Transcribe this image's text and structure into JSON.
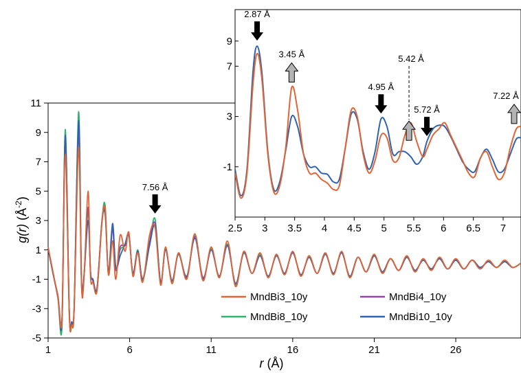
{
  "chart_data": [
    {
      "type": "line",
      "title": "",
      "xlabel_italic": "r",
      "xlabel_unit": "(Å)",
      "ylabel_italic": "g(r)",
      "ylabel_unit_base": "(Å",
      "ylabel_unit_sup": "-2",
      "ylabel_unit_end": ")",
      "xlim": [
        1,
        30
      ],
      "ylim": [
        -5,
        11
      ],
      "xticks": [
        1,
        6,
        11,
        16,
        21,
        26
      ],
      "yticks": [
        -5,
        -3,
        -1,
        1,
        3,
        5,
        7,
        9,
        11
      ],
      "grid": false,
      "legend_position": "bottom-right",
      "colors": {
        "MndBi3_10y": "#e06535",
        "MndBi4_10y": "#8e44a8",
        "MndBi8_10y": "#2fb36b",
        "MndBi10_10y": "#2e62b0"
      },
      "series": [
        {
          "name": "MndBi3_10y",
          "x": [
            1.0,
            1.3,
            1.6,
            1.85,
            2.05,
            2.3,
            2.45,
            2.6,
            2.87,
            3.05,
            3.2,
            3.45,
            3.6,
            3.75,
            4.0,
            4.3,
            4.5,
            4.7,
            4.95,
            5.15,
            5.42,
            5.72,
            5.95,
            6.2,
            6.5,
            6.8,
            7.22,
            7.56,
            7.9,
            8.2,
            8.6,
            9.0,
            9.5,
            10.0,
            10.5,
            11.0,
            11.5,
            12.0,
            12.5,
            13.0,
            13.5,
            14.0,
            14.5,
            15.0,
            15.5,
            16.0,
            16.5,
            17.0,
            17.5,
            18.0,
            18.5,
            19.0,
            19.5,
            20.0,
            20.5,
            21.0,
            21.5,
            22.0,
            22.5,
            23.0,
            23.5,
            24.0,
            24.5,
            25.0,
            25.5,
            26.0,
            26.5,
            27.0,
            27.5,
            28.0,
            28.5,
            29.0,
            29.5,
            30.0
          ],
          "y": [
            1.2,
            -0.5,
            -2.2,
            -3.8,
            7.5,
            -3.5,
            -4.1,
            -3.0,
            8.0,
            -1.5,
            -1.0,
            5.0,
            -0.8,
            -1.2,
            -1.8,
            2.8,
            3.8,
            -0.7,
            1.6,
            -1.0,
            2.0,
            0.9,
            2.2,
            -0.8,
            0.8,
            -1.2,
            2.0,
            2.5,
            -1.4,
            1.2,
            -1.3,
            0.8,
            -1.0,
            2.1,
            -1.1,
            1.2,
            -0.9,
            1.6,
            -1.5,
            0.9,
            -0.6,
            0.8,
            -0.9,
            0.7,
            -0.7,
            0.9,
            -0.8,
            0.6,
            -0.6,
            0.8,
            -0.7,
            0.9,
            -0.9,
            0.5,
            -0.5,
            0.7,
            -0.6,
            0.4,
            -0.4,
            0.6,
            -0.5,
            0.4,
            -0.4,
            0.5,
            -0.3,
            0.4,
            -0.3,
            0.3,
            -0.3,
            0.3,
            -0.2,
            0.3,
            -0.2,
            0.1
          ]
        },
        {
          "name": "MndBi4_10y",
          "x": [
            1.0,
            1.3,
            1.6,
            1.85,
            2.05,
            2.3,
            2.45,
            2.6,
            2.87,
            3.05,
            3.2,
            3.45,
            3.6,
            3.75,
            4.0,
            4.3,
            4.5,
            4.7,
            4.95,
            5.15,
            5.42,
            5.72,
            5.95,
            6.2,
            6.5,
            6.8,
            7.22,
            7.56,
            7.9,
            8.2,
            8.6,
            9.0,
            9.5,
            10.0,
            10.5,
            11.0,
            11.5,
            12.0,
            12.5,
            13.0,
            13.5,
            14.0,
            14.5,
            15.0,
            15.5,
            16.0,
            16.5,
            17.0,
            17.5,
            18.0,
            18.5,
            19.0,
            19.5,
            20.0,
            20.5,
            21.0,
            21.5,
            22.0,
            22.5,
            23.0,
            23.5,
            24.0,
            24.5,
            25.0,
            25.5,
            26.0,
            26.5,
            27.0,
            27.5,
            28.0,
            28.5,
            29.0,
            29.5,
            30.0
          ],
          "y": [
            1.1,
            -0.6,
            -2.1,
            -3.6,
            8.5,
            -3.2,
            -3.9,
            -2.8,
            9.0,
            -1.3,
            -0.8,
            3.9,
            -0.5,
            -1.0,
            -1.6,
            2.9,
            3.6,
            -0.6,
            2.4,
            -0.4,
            1.2,
            1.3,
            2.0,
            -0.6,
            0.9,
            -1.0,
            1.5,
            2.8,
            -1.2,
            1.0,
            -1.1,
            0.7,
            -0.9,
            1.9,
            -0.9,
            1.0,
            -0.8,
            1.3,
            -1.3,
            0.8,
            -0.6,
            0.6,
            -0.8,
            0.6,
            -0.6,
            0.8,
            -0.7,
            0.5,
            -0.6,
            0.7,
            -0.6,
            0.8,
            -0.8,
            0.5,
            -0.5,
            0.6,
            -0.5,
            0.4,
            -0.4,
            0.5,
            -0.4,
            0.3,
            -0.3,
            0.4,
            -0.3,
            0.3,
            -0.3,
            0.3,
            -0.2,
            0.2,
            -0.2,
            0.2,
            -0.2,
            0.1
          ]
        },
        {
          "name": "MndBi8_10y",
          "x": [
            1.0,
            1.3,
            1.6,
            1.85,
            2.05,
            2.3,
            2.45,
            2.6,
            2.87,
            3.05,
            3.2,
            3.45,
            3.6,
            3.75,
            4.0,
            4.3,
            4.5,
            4.7,
            4.95,
            5.15,
            5.42,
            5.72,
            5.95,
            6.2,
            6.5,
            6.8,
            7.22,
            7.56,
            7.9,
            8.2,
            8.6,
            9.0,
            9.5,
            10.0,
            10.5,
            11.0,
            11.5,
            12.0,
            12.5,
            13.0,
            13.5,
            14.0,
            14.5,
            15.0,
            15.5,
            16.0,
            16.5,
            17.0,
            17.5,
            18.0,
            18.5,
            19.0,
            19.5,
            20.0,
            20.5,
            21.0,
            21.5,
            22.0,
            22.5,
            23.0,
            23.5,
            24.0,
            24.5,
            25.0,
            25.5,
            26.0,
            26.5,
            27.0,
            27.5,
            28.0,
            28.5,
            29.0,
            29.5,
            30.0
          ],
          "y": [
            1.1,
            -0.6,
            -2.3,
            -4.2,
            9.2,
            -3.4,
            -4.0,
            -2.9,
            10.4,
            -1.2,
            -0.7,
            3.6,
            -0.5,
            -1.0,
            -1.7,
            3.0,
            4.0,
            -0.7,
            2.6,
            -0.3,
            1.0,
            1.3,
            2.1,
            -0.7,
            1.0,
            -1.1,
            1.4,
            3.1,
            -1.3,
            1.1,
            -1.2,
            0.8,
            -0.9,
            2.0,
            -1.0,
            1.1,
            -0.8,
            1.4,
            -1.4,
            0.8,
            -0.6,
            0.7,
            -0.8,
            0.6,
            -0.6,
            0.8,
            -0.7,
            0.5,
            -0.6,
            0.7,
            -0.6,
            0.8,
            -0.8,
            0.5,
            -0.5,
            0.6,
            -0.5,
            0.4,
            -0.4,
            0.5,
            -0.4,
            0.3,
            -0.3,
            0.4,
            -0.3,
            0.3,
            -0.3,
            0.3,
            -0.2,
            0.2,
            -0.2,
            0.2,
            -0.2,
            0.1
          ]
        },
        {
          "name": "MndBi10_10y",
          "x": [
            1.0,
            1.3,
            1.6,
            1.85,
            2.05,
            2.3,
            2.45,
            2.6,
            2.87,
            3.05,
            3.2,
            3.45,
            3.6,
            3.75,
            4.0,
            4.3,
            4.5,
            4.7,
            4.95,
            5.15,
            5.42,
            5.72,
            5.95,
            6.2,
            6.5,
            6.8,
            7.22,
            7.56,
            7.9,
            8.2,
            8.6,
            9.0,
            9.5,
            10.0,
            10.5,
            11.0,
            11.5,
            12.0,
            12.5,
            13.0,
            13.5,
            14.0,
            14.5,
            15.0,
            15.5,
            16.0,
            16.5,
            17.0,
            17.5,
            18.0,
            18.5,
            19.0,
            19.5,
            20.0,
            20.5,
            21.0,
            21.5,
            22.0,
            22.5,
            23.0,
            23.5,
            24.0,
            24.5,
            25.0,
            25.5,
            26.0,
            26.5,
            27.0,
            27.5,
            28.0,
            28.5,
            29.0,
            29.5,
            30.0
          ],
          "y": [
            1.1,
            -0.6,
            -2.2,
            -3.9,
            8.8,
            -3.3,
            -3.9,
            -2.8,
            9.8,
            -1.2,
            -0.8,
            3.0,
            -0.5,
            -1.1,
            -1.6,
            2.9,
            3.4,
            -0.6,
            2.8,
            -0.2,
            0.6,
            1.4,
            2.0,
            -0.6,
            0.9,
            -1.0,
            1.3,
            2.6,
            -1.2,
            1.0,
            -1.1,
            0.7,
            -0.8,
            1.8,
            -1.0,
            1.0,
            -0.8,
            1.3,
            -1.3,
            0.8,
            -0.6,
            0.6,
            -0.8,
            0.6,
            -0.6,
            0.8,
            -0.7,
            0.5,
            -0.6,
            0.7,
            -0.6,
            0.8,
            -0.8,
            0.5,
            -0.5,
            0.6,
            -0.5,
            0.4,
            -0.4,
            0.5,
            -0.4,
            0.3,
            -0.3,
            0.4,
            -0.3,
            0.3,
            -0.3,
            0.3,
            -0.2,
            0.2,
            -0.2,
            0.2,
            -0.2,
            0.1
          ]
        }
      ],
      "annotations": [
        {
          "label": "7.56 Å",
          "x": 7.56,
          "y": 3.1,
          "arrow": "down",
          "arrow_color": "black"
        }
      ]
    },
    {
      "type": "line",
      "inset": true,
      "title": "",
      "xlim": [
        2.5,
        7.3
      ],
      "ylim": [
        -5,
        11.5
      ],
      "xticks": [
        2.5,
        3,
        3.5,
        4,
        4.5,
        5,
        5.5,
        6,
        6.5,
        7
      ],
      "xtick_labels": [
        "2.5",
        "3",
        "3.5",
        "4",
        "4.5",
        "5",
        "5.5",
        "6",
        "6.5",
        "7"
      ],
      "yticks": [
        -1,
        3,
        7,
        9
      ],
      "colors": {
        "MndBi3_10y": "#e06535",
        "MndBi10_10y": "#2e62b0"
      },
      "series": [
        {
          "name": "MndBi3_10y",
          "x": [
            2.5,
            2.6,
            2.7,
            2.8,
            2.87,
            2.95,
            3.05,
            3.15,
            3.25,
            3.35,
            3.45,
            3.55,
            3.65,
            3.75,
            3.85,
            3.95,
            4.05,
            4.15,
            4.25,
            4.35,
            4.45,
            4.55,
            4.65,
            4.75,
            4.85,
            4.95,
            5.05,
            5.15,
            5.25,
            5.35,
            5.45,
            5.55,
            5.65,
            5.72,
            5.82,
            5.92,
            6.02,
            6.12,
            6.22,
            6.32,
            6.42,
            6.52,
            6.62,
            6.72,
            6.82,
            6.92,
            7.02,
            7.12,
            7.22,
            7.3
          ],
          "y": [
            -1.5,
            -3.5,
            -1.5,
            5.5,
            8.0,
            6.0,
            0.0,
            -3.0,
            -2.5,
            0.5,
            5.3,
            3.5,
            0.0,
            -1.5,
            -1.5,
            -2.0,
            -2.3,
            -2.8,
            -2.5,
            0.5,
            3.5,
            3.0,
            0.0,
            -1.5,
            -0.5,
            1.5,
            1.3,
            -0.5,
            -0.3,
            1.5,
            2.5,
            1.0,
            -0.2,
            0.4,
            1.5,
            2.0,
            2.5,
            1.5,
            0.5,
            -0.5,
            -1.5,
            -1.8,
            -0.3,
            0.2,
            -1.0,
            -2.0,
            -1.5,
            0.5,
            2.0,
            2.2
          ]
        },
        {
          "name": "MndBi10_10y",
          "x": [
            2.5,
            2.6,
            2.7,
            2.8,
            2.87,
            2.95,
            3.05,
            3.15,
            3.25,
            3.35,
            3.45,
            3.55,
            3.65,
            3.75,
            3.85,
            3.95,
            4.05,
            4.15,
            4.25,
            4.35,
            4.45,
            4.55,
            4.65,
            4.75,
            4.85,
            4.95,
            5.05,
            5.15,
            5.25,
            5.35,
            5.45,
            5.55,
            5.65,
            5.72,
            5.82,
            5.92,
            6.02,
            6.12,
            6.22,
            6.32,
            6.42,
            6.52,
            6.62,
            6.72,
            6.82,
            6.92,
            7.02,
            7.12,
            7.22,
            7.3
          ],
          "y": [
            -1.2,
            -3.3,
            -1.2,
            6.5,
            8.6,
            6.5,
            0.2,
            -2.8,
            -2.2,
            0.3,
            3.0,
            2.2,
            0.0,
            -1.0,
            -1.0,
            -1.5,
            -1.6,
            -2.2,
            -2.0,
            0.5,
            3.2,
            2.8,
            0.2,
            -1.2,
            0.2,
            2.8,
            2.2,
            0.0,
            0.2,
            0.2,
            -0.2,
            -0.8,
            -0.2,
            1.0,
            2.0,
            2.3,
            2.2,
            1.4,
            0.4,
            -0.6,
            -1.2,
            -1.4,
            -0.3,
            0.4,
            -0.4,
            -1.4,
            -1.2,
            0.0,
            1.2,
            1.3
          ]
        }
      ],
      "annotations": [
        {
          "label": "2.87 Å",
          "x": 2.87,
          "arrow": "down",
          "arrow_color": "black"
        },
        {
          "label": "3.45 Å",
          "x": 3.45,
          "arrow": "up",
          "arrow_color": "gray"
        },
        {
          "label": "4.95 Å",
          "x": 4.95,
          "arrow": "down",
          "arrow_color": "black"
        },
        {
          "label": "5.42 Å",
          "x": 5.42,
          "arrow": "up",
          "arrow_color": "gray"
        },
        {
          "label": "5.72 Å",
          "x": 5.72,
          "arrow": "down",
          "arrow_color": "black"
        },
        {
          "label": "7.22 Å",
          "x": 7.22,
          "arrow": "up",
          "arrow_color": "gray"
        }
      ]
    }
  ]
}
